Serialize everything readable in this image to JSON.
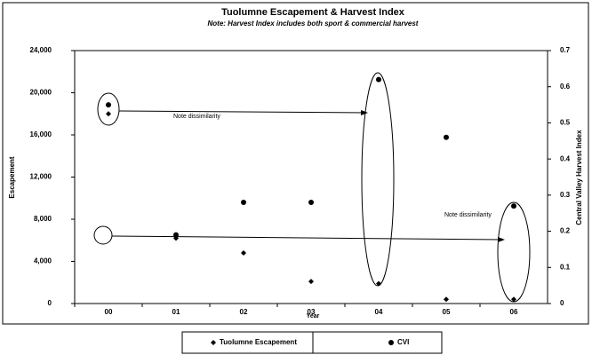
{
  "chart_data": {
    "type": "scatter",
    "title": "Tuolumne Escapement & Harvest Index",
    "subtitle": "Note: Harvest Index includes both sport & commercial harvest",
    "x_label": "Year",
    "y_label": "Escapement",
    "y2_label": "Central Valley Harvest Index",
    "categories": [
      "00",
      "01",
      "02",
      "03",
      "04",
      "05",
      "06"
    ],
    "series": [
      {
        "name": "Tuolumne Escapement",
        "color": "#000000",
        "marker": "diamond",
        "values": [
          18000,
          6200,
          4800,
          2100,
          1900,
          400,
          400
        ]
      },
      {
        "name": "CVI",
        "color": "#000000",
        "marker": "circle",
        "axis": "y2",
        "values": [
          0.55,
          0.19,
          0.28,
          0.28,
          0.62,
          0.46,
          0.27
        ]
      }
    ],
    "ylim": [
      0,
      24000
    ],
    "yticks": [
      0,
      {
        "value": 4000,
        "label": "4,000"
      },
      {
        "value": 8000,
        "label": "8,000"
      },
      {
        "value": 12000,
        "label": "12,000"
      },
      {
        "value": 16000,
        "label": "16,000"
      },
      {
        "value": 20000,
        "label": "20,000"
      },
      {
        "value": 24000,
        "label": "24,000"
      }
    ],
    "y2lim": [
      0,
      0.7
    ],
    "y2ticks": [
      0,
      0.1,
      0.2,
      0.3,
      0.4,
      0.5,
      0.6,
      0.7
    ],
    "annotations": [
      "Note dissimilarity",
      "Note dissimilarity"
    ],
    "grid": false,
    "legend": "bottom"
  }
}
